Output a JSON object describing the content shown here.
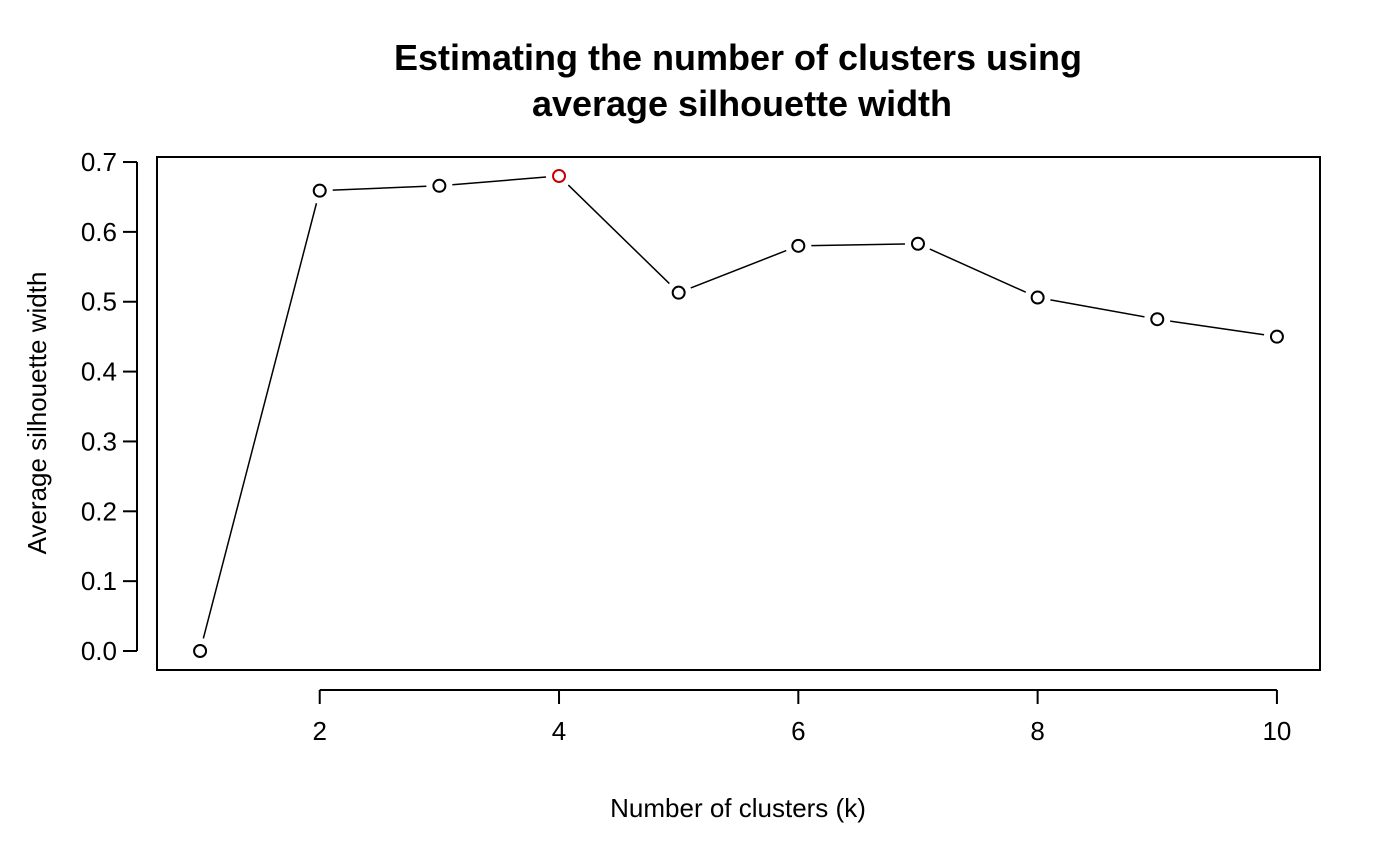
{
  "chart_data": {
    "type": "line",
    "title": [
      "Estimating the number of clusters using",
      "average silhouette width"
    ],
    "xlabel": "Number of clusters (k)",
    "ylabel": "Average silhouette width",
    "x": [
      1,
      2,
      3,
      4,
      5,
      6,
      7,
      8,
      9,
      10
    ],
    "series": [
      {
        "values": [
          0.0,
          0.659,
          0.666,
          0.68,
          0.513,
          0.58,
          0.583,
          0.506,
          0.475,
          0.45
        ]
      }
    ],
    "highlight": {
      "x": 4,
      "color": "#cc0000"
    },
    "xticks": [
      "2",
      "4",
      "6",
      "8",
      "10"
    ],
    "yticks": [
      "0.0",
      "0.1",
      "0.2",
      "0.3",
      "0.4",
      "0.5",
      "0.6",
      "0.7"
    ],
    "xlim": [
      0.64,
      10.36
    ],
    "ylim": [
      -0.0272,
      0.7072
    ],
    "grid": false,
    "line_color": "#000000",
    "point_style": "open-circle"
  }
}
